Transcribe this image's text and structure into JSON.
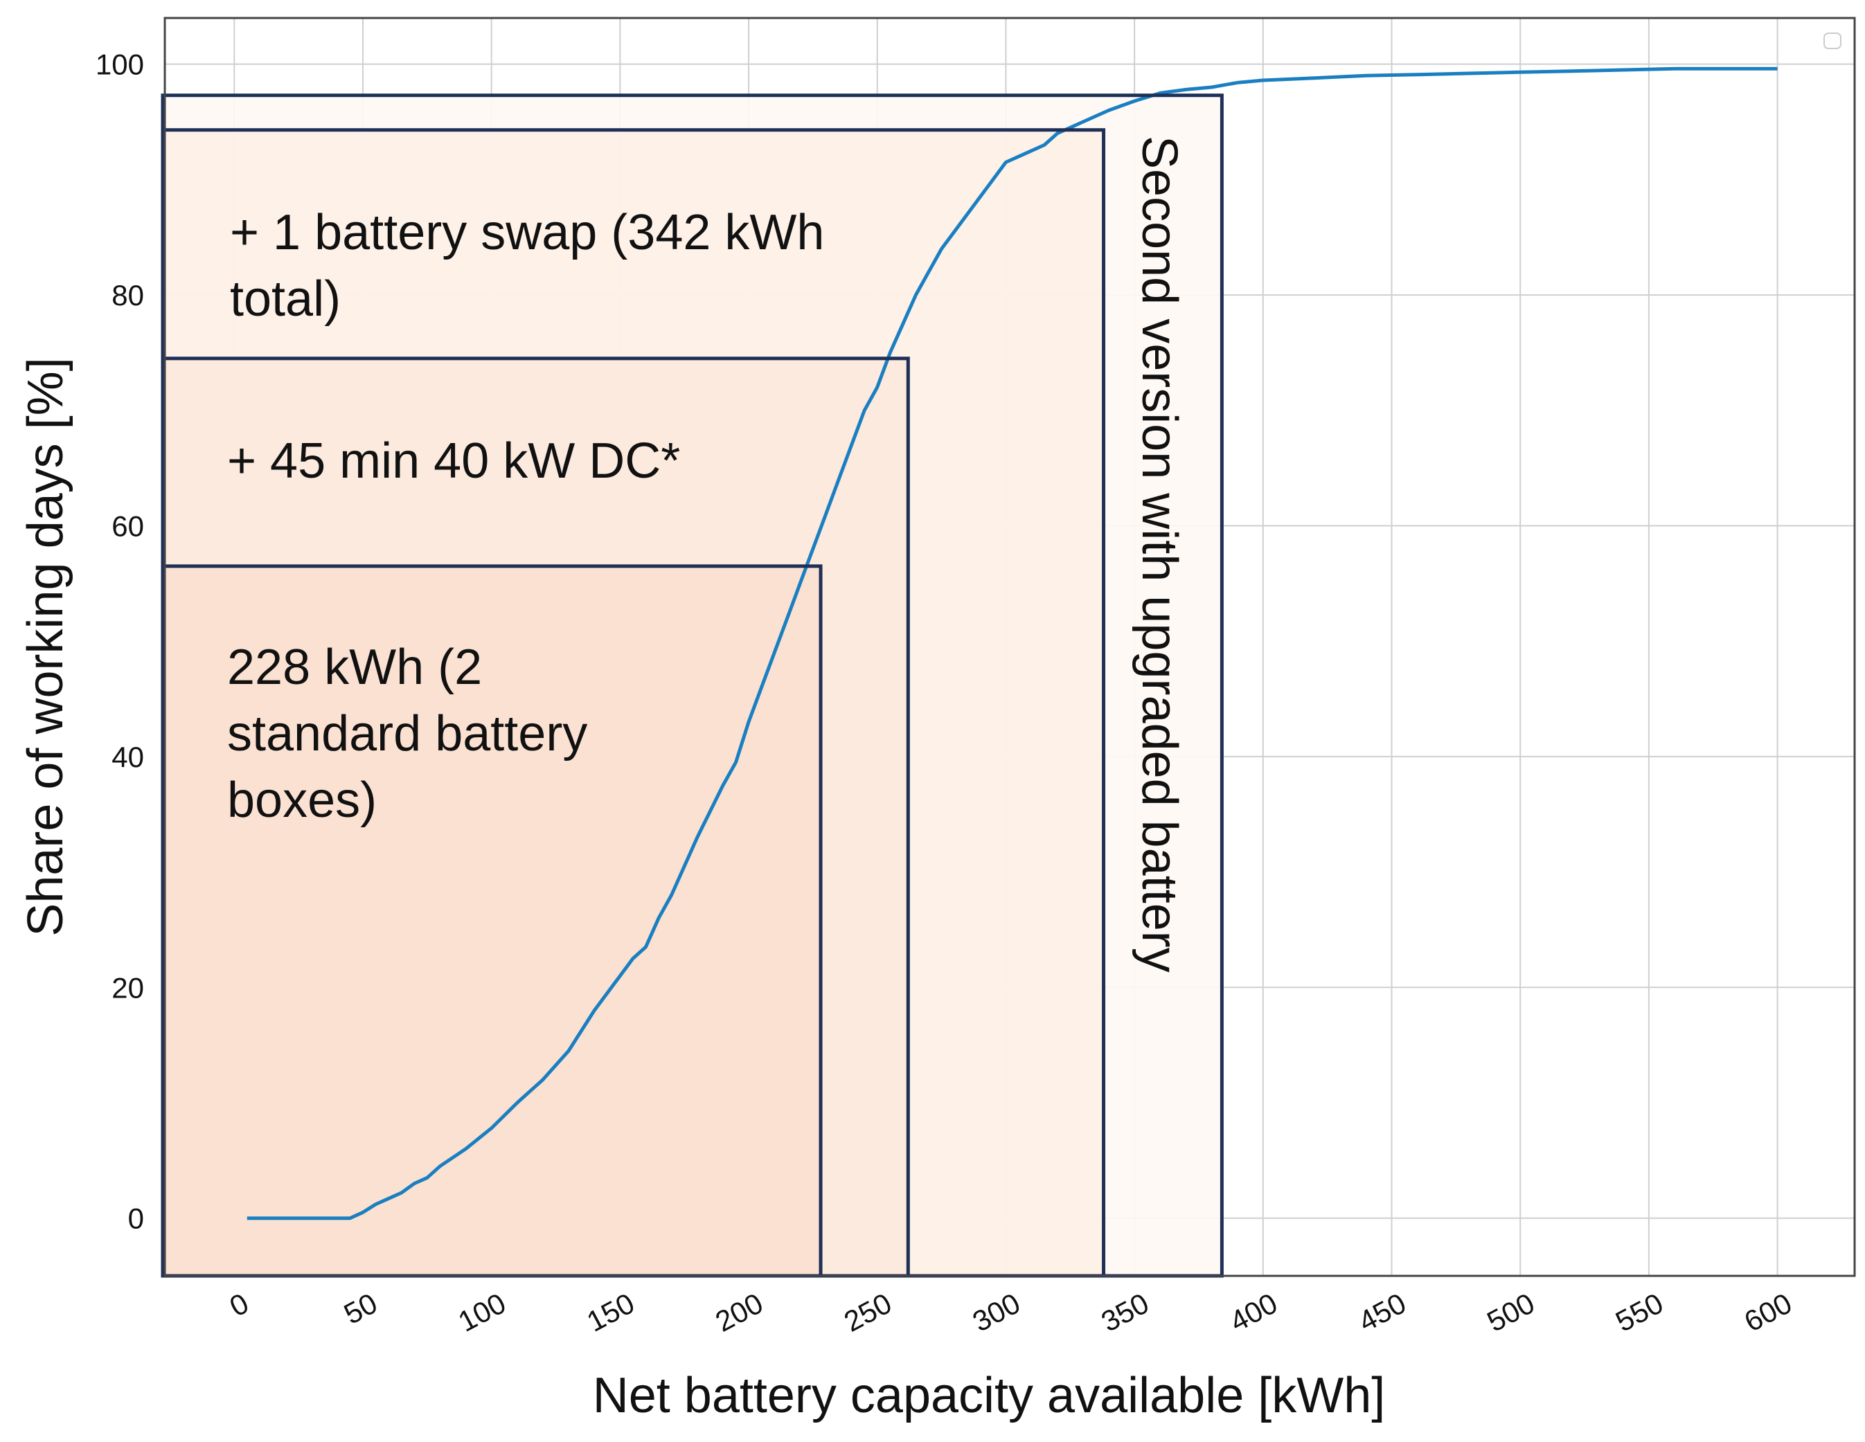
{
  "colors": {
    "line": "#1a7fc1",
    "box_stroke": "#1f3058",
    "grid": "#cfcfcf",
    "frame": "#444444",
    "fill_box1": "#fbe0d0",
    "fill_box2": "#fce9dd",
    "fill_box3": "#fdf0e7",
    "fill_box4": "#fef8f4"
  },
  "chart_data": {
    "type": "line",
    "title": "",
    "xlabel": "Net battery capacity available [kWh]",
    "ylabel": "Share of working days [%]",
    "xlim": [
      -27,
      630
    ],
    "ylim": [
      -5,
      104
    ],
    "xticks": [
      0,
      50,
      100,
      150,
      200,
      250,
      300,
      350,
      400,
      450,
      500,
      550,
      600
    ],
    "yticks": [
      0,
      20,
      40,
      60,
      80,
      100
    ],
    "grid": true,
    "legend": "top-right (empty)",
    "series": [
      {
        "name": "Share of working days",
        "x": [
          5,
          30,
          45,
          50,
          55,
          60,
          65,
          70,
          75,
          80,
          90,
          100,
          110,
          120,
          130,
          140,
          150,
          155,
          160,
          165,
          170,
          180,
          190,
          195,
          200,
          205,
          210,
          215,
          220,
          225,
          230,
          235,
          240,
          245,
          250,
          255,
          260,
          265,
          270,
          275,
          280,
          290,
          300,
          310,
          315,
          320,
          330,
          340,
          350,
          360,
          370,
          380,
          385,
          390,
          400,
          420,
          440,
          460,
          480,
          500,
          520,
          540,
          560,
          580,
          600
        ],
        "y": [
          0,
          0,
          0,
          0.5,
          1.2,
          1.7,
          2.2,
          3,
          3.5,
          4.5,
          6,
          7.8,
          10,
          12,
          14.5,
          18,
          21,
          22.5,
          23.5,
          26,
          28,
          33,
          37.5,
          39.5,
          43,
          46,
          49,
          52,
          55,
          58,
          61,
          64,
          67,
          70,
          72,
          75,
          77.5,
          80,
          82,
          84,
          85.5,
          88.5,
          91.5,
          92.5,
          93,
          94,
          95,
          96,
          96.8,
          97.5,
          97.8,
          98,
          98.2,
          98.4,
          98.6,
          98.8,
          99,
          99.1,
          99.2,
          99.3,
          99.4,
          99.5,
          99.6,
          99.6,
          99.6
        ]
      }
    ],
    "boxes": [
      {
        "label": "228 kWh (2 standard battery boxes)",
        "lines": [
          "228 kWh (2",
          "standard battery",
          "boxes)"
        ],
        "x_max": 228,
        "y_max": 56.5
      },
      {
        "label": "+ 45 min 40 kW DC*",
        "lines": [
          "+ 45 min 40 kW DC*"
        ],
        "x_max": 262,
        "y_max": 74.5
      },
      {
        "label": "+ 1 battery swap (342 kWh total)",
        "lines": [
          "+ 1 battery swap (342 kWh",
          "total)"
        ],
        "x_max": 338,
        "y_max": 94.3
      },
      {
        "label": "Second version with upgraded battery",
        "lines": [
          "Second version with upgraded battery"
        ],
        "x_max": 384,
        "y_max": 97.3
      }
    ]
  }
}
